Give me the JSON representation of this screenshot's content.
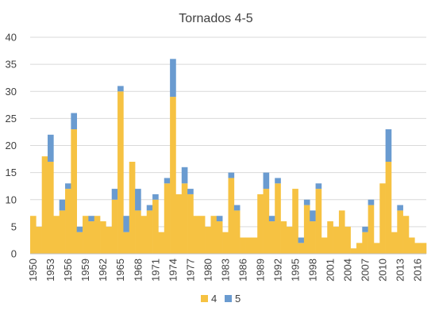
{
  "chart_data": {
    "type": "bar",
    "stacked": true,
    "title": "Tornados 4-5",
    "xlabel": "",
    "ylabel": "",
    "ylim": [
      0,
      40
    ],
    "y_ticks": [
      0,
      5,
      10,
      15,
      20,
      25,
      30,
      35,
      40
    ],
    "grid": true,
    "legend_position": "bottom",
    "categories": [
      "1950",
      "1951",
      "1952",
      "1953",
      "1954",
      "1955",
      "1956",
      "1957",
      "1958",
      "1959",
      "1960",
      "1961",
      "1962",
      "1963",
      "1964",
      "1965",
      "1966",
      "1967",
      "1968",
      "1969",
      "1970",
      "1971",
      "1972",
      "1973",
      "1974",
      "1975",
      "1976",
      "1977",
      "1978",
      "1979",
      "1980",
      "1981",
      "1982",
      "1983",
      "1984",
      "1985",
      "1986",
      "1987",
      "1988",
      "1989",
      "1990",
      "1991",
      "1992",
      "1993",
      "1994",
      "1995",
      "1996",
      "1997",
      "1998",
      "1999",
      "2000",
      "2001",
      "2002",
      "2003",
      "2004",
      "2005",
      "2006",
      "2007",
      "2008",
      "2009",
      "2010",
      "2011",
      "2012",
      "2013",
      "2014",
      "2015",
      "2016",
      "2017"
    ],
    "x_tick_labels": [
      "1950",
      "1953",
      "1956",
      "1959",
      "1962",
      "1965",
      "1968",
      "1971",
      "1974",
      "1977",
      "1980",
      "1983",
      "1986",
      "1989",
      "1992",
      "1995",
      "1998",
      "2001",
      "2004",
      "2007",
      "2010",
      "2013",
      "2016"
    ],
    "series": [
      {
        "name": "4",
        "color": "#F6C242",
        "values": [
          7,
          5,
          18,
          17,
          7,
          8,
          12,
          23,
          4,
          7,
          6,
          7,
          6,
          5,
          10,
          30,
          4,
          17,
          8,
          7,
          8,
          10,
          4,
          13,
          29,
          11,
          13,
          11,
          7,
          7,
          5,
          7,
          6,
          4,
          14,
          8,
          3,
          3,
          3,
          11,
          12,
          6,
          13,
          6,
          5,
          12,
          2,
          9,
          6,
          12,
          3,
          6,
          5,
          8,
          5,
          1,
          2,
          4,
          9,
          2,
          13,
          17,
          4,
          8,
          7,
          3,
          2,
          2
        ]
      },
      {
        "name": "5",
        "color": "#6A9BD0",
        "values": [
          0,
          0,
          0,
          5,
          0,
          2,
          1,
          3,
          1,
          0,
          1,
          0,
          0,
          0,
          2,
          1,
          3,
          0,
          4,
          0,
          1,
          1,
          0,
          1,
          7,
          0,
          3,
          1,
          0,
          0,
          0,
          0,
          1,
          0,
          1,
          1,
          0,
          0,
          0,
          0,
          3,
          1,
          1,
          0,
          0,
          0,
          1,
          1,
          2,
          1,
          0,
          0,
          0,
          0,
          0,
          0,
          0,
          1,
          1,
          0,
          0,
          6,
          0,
          1,
          0,
          0,
          0,
          0
        ]
      }
    ]
  }
}
